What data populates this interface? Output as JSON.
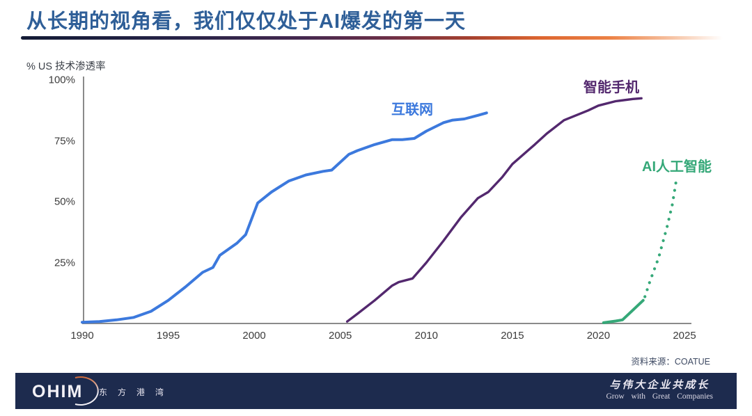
{
  "page": {
    "title": "从长期的视角看，我们仅仅处于AI爆发的第一天",
    "source": "资料来源：COATUE"
  },
  "colors": {
    "title": "#2f5f98",
    "underline_start": "#141c36",
    "underline_mid": "#6b2f48",
    "underline_end": "#ec8246",
    "axis": "#8a8a8a",
    "tick_text": "#3c3c3c",
    "internet": "#3c79dd",
    "smartphone": "#53286e",
    "ai": "#35a878",
    "footer_bg": "#1d2b4e"
  },
  "chart_data": {
    "type": "line",
    "title": "",
    "ylabel": "% US 技术渗透率",
    "xlabel": "",
    "xlim": [
      1990,
      2025
    ],
    "ylim": [
      0,
      100
    ],
    "grid": false,
    "legend_position": "inline-labels",
    "x_ticks": [
      1990,
      1995,
      2000,
      2005,
      2010,
      2015,
      2020,
      2025
    ],
    "y_ticks": [
      {
        "label": "100%",
        "value": 100
      },
      {
        "label": "75%",
        "value": 75
      },
      {
        "label": "50%",
        "value": 50
      },
      {
        "label": "25%",
        "value": 25
      }
    ],
    "series": [
      {
        "id": "internet",
        "name": "互联网",
        "color": "#3c79dd",
        "width": 4,
        "dash": null,
        "points": [
          [
            1990,
            0.5
          ],
          [
            1991,
            0.8
          ],
          [
            1992,
            1.5
          ],
          [
            1993,
            2.5
          ],
          [
            1994,
            5
          ],
          [
            1995,
            9.5
          ],
          [
            1996,
            15
          ],
          [
            1997,
            21
          ],
          [
            1997.6,
            23
          ],
          [
            1998,
            28
          ],
          [
            1999,
            33
          ],
          [
            1999.5,
            36.5
          ],
          [
            2000.2,
            49.5
          ],
          [
            2001,
            54
          ],
          [
            2002,
            58.5
          ],
          [
            2003,
            61
          ],
          [
            2004,
            62.5
          ],
          [
            2004.5,
            63
          ],
          [
            2005.5,
            69.5
          ],
          [
            2006,
            71
          ],
          [
            2007,
            73.5
          ],
          [
            2008,
            75.5
          ],
          [
            2008.6,
            75.5
          ],
          [
            2009.3,
            76
          ],
          [
            2010,
            79
          ],
          [
            2011,
            82.5
          ],
          [
            2011.5,
            83.5
          ],
          [
            2012.2,
            84
          ],
          [
            2013,
            85.5
          ],
          [
            2013.5,
            86.5
          ]
        ]
      },
      {
        "id": "smartphone",
        "name": "智能手机",
        "color": "#53286e",
        "width": 3.4,
        "dash": null,
        "points": [
          [
            2005.4,
            0.8
          ],
          [
            2006,
            4
          ],
          [
            2007,
            9.5
          ],
          [
            2008,
            15.5
          ],
          [
            2008.4,
            17
          ],
          [
            2009.2,
            18.5
          ],
          [
            2010,
            25
          ],
          [
            2011,
            34
          ],
          [
            2012,
            43.5
          ],
          [
            2013,
            51.5
          ],
          [
            2013.6,
            54
          ],
          [
            2014.4,
            60
          ],
          [
            2015,
            65.5
          ],
          [
            2016.3,
            73.5
          ],
          [
            2017,
            78
          ],
          [
            2018,
            83.5
          ],
          [
            2019.4,
            87.5
          ],
          [
            2020,
            89.5
          ],
          [
            2021,
            91.3
          ],
          [
            2022,
            92.2
          ],
          [
            2022.5,
            92.5
          ]
        ]
      },
      {
        "id": "ai-actual",
        "name": "AI人工智能 (实际)",
        "color": "#35a878",
        "width": 4,
        "dash": null,
        "points": [
          [
            2020.3,
            0.3
          ],
          [
            2021,
            1
          ],
          [
            2021.4,
            1.5
          ],
          [
            2022,
            5.5
          ],
          [
            2022.6,
            9.5
          ]
        ]
      },
      {
        "id": "ai-projected",
        "name": "AI人工智能 (预测)",
        "color": "#35a878",
        "width": 4.2,
        "dash": "0.1 10.5",
        "points": [
          [
            2022.7,
            11
          ],
          [
            2023,
            17.5
          ],
          [
            2023.5,
            27
          ],
          [
            2024,
            40
          ],
          [
            2024.3,
            49
          ],
          [
            2024.55,
            60
          ]
        ]
      }
    ],
    "series_labels": [
      {
        "id": "internet",
        "text": "互联网",
        "color": "#3c79dd"
      },
      {
        "id": "smartphone",
        "text": "智能手机",
        "color": "#53286e"
      },
      {
        "id": "ai",
        "text": "AI人工智能",
        "color": "#35a878"
      }
    ]
  },
  "footer": {
    "logo": "OHIM",
    "logo_cn": "东 方 港 湾",
    "slogan_cn": "与伟大企业共成长",
    "slogan_en": "Grow with Great Companies"
  }
}
